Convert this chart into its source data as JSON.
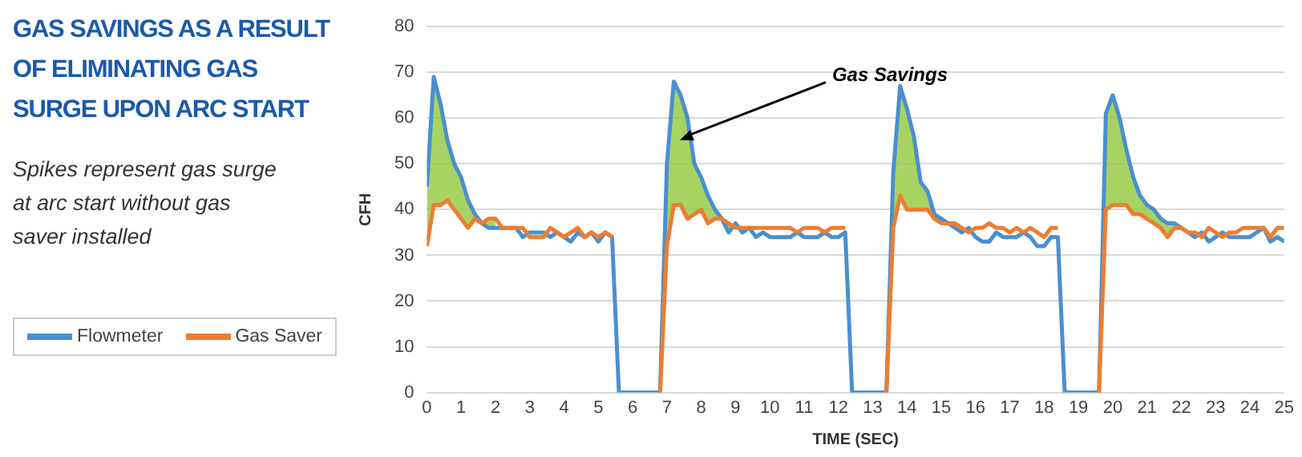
{
  "chart_data": {
    "type": "line",
    "title": "GAS SAVINGS AS A RESULT OF ELIMINATING GAS SURGE UPON ARC START",
    "subtitle": "Spikes represent gas surge at arc start without gas saver installed",
    "xlabel": "TIME (SEC)",
    "ylabel": "CFH",
    "x": [
      0,
      0.2,
      0.4,
      0.6,
      0.8,
      1,
      1.2,
      1.4,
      1.6,
      1.8,
      2,
      2.2,
      2.4,
      2.6,
      2.8,
      3,
      3.2,
      3.4,
      3.6,
      3.8,
      4,
      4.2,
      4.4,
      4.6,
      4.8,
      5,
      5.2,
      5.4,
      5.6,
      5.8,
      6,
      6.2,
      6.4,
      6.6,
      6.8,
      7,
      7.2,
      7.4,
      7.6,
      7.8,
      8,
      8.2,
      8.4,
      8.6,
      8.8,
      9,
      9.2,
      9.4,
      9.6,
      9.8,
      10,
      10.2,
      10.4,
      10.6,
      10.8,
      11,
      11.2,
      11.4,
      11.6,
      11.8,
      12,
      12.2,
      12.4,
      12.6,
      12.8,
      13,
      13.2,
      13.4,
      13.6,
      13.8,
      14,
      14.2,
      14.4,
      14.6,
      14.8,
      15,
      15.2,
      15.4,
      15.6,
      15.8,
      16,
      16.2,
      16.4,
      16.6,
      16.8,
      17,
      17.2,
      17.4,
      17.6,
      17.8,
      18,
      18.2,
      18.4,
      18.6,
      18.8,
      19,
      19.2,
      19.4,
      19.6,
      19.8,
      20,
      20.2,
      20.4,
      20.6,
      20.8,
      21,
      21.2,
      21.4,
      21.6,
      21.8,
      22,
      22.2,
      22.4,
      22.6,
      22.8,
      23,
      23.2,
      23.4,
      23.6,
      23.8,
      24,
      24.2,
      24.4,
      24.6,
      24.8,
      25
    ],
    "series": [
      {
        "name": "Flowmeter",
        "color": "#4a8fd0",
        "lower": [
          32,
          41,
          41,
          42,
          40,
          38,
          36,
          38,
          37,
          38,
          38,
          null,
          null,
          null,
          null,
          null,
          null,
          null,
          null,
          null,
          null,
          null,
          null,
          null,
          null,
          null,
          null,
          null,
          null,
          null,
          null,
          null,
          null,
          null,
          0,
          32,
          41,
          41,
          38,
          39,
          40,
          37,
          38,
          38,
          37,
          36,
          36,
          36,
          null,
          null,
          null,
          null,
          null,
          null,
          null,
          null,
          null,
          null,
          null,
          null,
          null,
          null,
          null,
          null,
          null,
          null,
          null,
          0,
          36,
          43,
          40,
          40,
          40,
          40,
          38,
          37,
          37,
          null,
          null,
          null,
          null,
          null,
          null,
          null,
          null,
          null,
          null,
          null,
          null,
          null,
          null,
          null,
          null,
          null,
          null,
          null,
          null,
          null,
          0,
          40,
          41,
          41,
          41,
          39,
          39,
          38,
          37,
          36,
          34,
          36,
          36,
          null,
          null,
          null,
          null,
          null,
          null,
          null,
          null,
          null,
          null,
          null,
          null,
          null,
          null,
          null
        ],
        "upper": [
          45,
          69,
          63,
          55,
          50,
          47,
          42,
          39,
          37,
          36,
          36,
          null,
          null,
          null,
          null,
          null,
          null,
          null,
          null,
          null,
          null,
          null,
          null,
          null,
          null,
          null,
          null,
          null,
          null,
          null,
          null,
          null,
          null,
          null,
          0,
          50,
          68,
          65,
          60,
          50,
          47,
          43,
          40,
          38,
          35,
          37,
          35,
          36,
          null,
          null,
          null,
          null,
          null,
          null,
          null,
          null,
          null,
          null,
          null,
          null,
          null,
          null,
          null,
          null,
          null,
          null,
          null,
          0,
          48,
          67,
          62,
          56,
          46,
          44,
          39,
          38,
          37,
          null,
          null,
          null,
          null,
          null,
          null,
          null,
          null,
          null,
          null,
          null,
          null,
          null,
          null,
          null,
          null,
          null,
          null,
          null,
          null,
          null,
          0,
          61,
          65,
          60,
          53,
          47,
          43,
          41,
          40,
          38,
          37,
          37,
          36,
          null,
          null,
          null,
          null,
          null,
          null,
          null,
          null,
          null,
          null,
          null,
          null,
          null,
          null,
          null
        ],
        "values": [
          45,
          69,
          63,
          55,
          50,
          47,
          42,
          39,
          37,
          36,
          36,
          36,
          36,
          36,
          34,
          35,
          35,
          35,
          34,
          35,
          34,
          33,
          35,
          34,
          35,
          33,
          35,
          34,
          0,
          0,
          0,
          0,
          0,
          0,
          0,
          50,
          68,
          65,
          60,
          50,
          47,
          43,
          40,
          38,
          35,
          37,
          35,
          36,
          34,
          35,
          34,
          34,
          34,
          34,
          35,
          34,
          34,
          34,
          35,
          34,
          34,
          35,
          0,
          0,
          0,
          0,
          0,
          0,
          48,
          67,
          62,
          56,
          46,
          44,
          39,
          38,
          37,
          36,
          35,
          36,
          34,
          33,
          33,
          35,
          34,
          34,
          34,
          35,
          34,
          32,
          32,
          34,
          34,
          0,
          0,
          0,
          0,
          0,
          0,
          61,
          65,
          60,
          53,
          47,
          43,
          41,
          40,
          38,
          37,
          37,
          36,
          35,
          34,
          35,
          33,
          34,
          35,
          34,
          34,
          34,
          34,
          35,
          36,
          33,
          34,
          33
        ]
      },
      {
        "name": "Gas Saver",
        "color": "#ed7d31",
        "values": [
          32,
          41,
          41,
          42,
          40,
          38,
          36,
          38,
          37,
          38,
          38,
          36,
          36,
          36,
          36,
          34,
          34,
          34,
          36,
          35,
          34,
          35,
          36,
          34,
          35,
          34,
          35,
          34,
          null,
          null,
          null,
          null,
          null,
          null,
          0,
          32,
          41,
          41,
          38,
          39,
          40,
          37,
          38,
          38,
          37,
          36,
          36,
          36,
          36,
          36,
          36,
          36,
          36,
          36,
          35,
          36,
          36,
          36,
          35,
          36,
          36,
          36,
          null,
          null,
          null,
          null,
          null,
          0,
          36,
          43,
          40,
          40,
          40,
          40,
          38,
          37,
          37,
          37,
          36,
          35,
          36,
          36,
          37,
          36,
          36,
          35,
          36,
          35,
          36,
          35,
          34,
          36,
          36,
          null,
          null,
          null,
          null,
          null,
          0,
          40,
          41,
          41,
          41,
          39,
          39,
          38,
          37,
          36,
          34,
          36,
          36,
          35,
          35,
          34,
          36,
          35,
          34,
          35,
          35,
          36,
          36,
          36,
          36,
          34,
          36,
          36
        ]
      }
    ],
    "xlim": [
      0,
      25
    ],
    "xticks": [
      0,
      1,
      2,
      3,
      4,
      5,
      6,
      7,
      8,
      9,
      10,
      11,
      12,
      13,
      14,
      15,
      16,
      17,
      18,
      19,
      20,
      21,
      22,
      23,
      24,
      25
    ],
    "ylim": [
      0,
      80
    ],
    "yticks": [
      0,
      10,
      20,
      30,
      40,
      50,
      60,
      70,
      80
    ],
    "grid": "y",
    "legend": "left",
    "marker": "none",
    "line_style": "solid",
    "annotations": [
      "Gas Savings"
    ]
  }
}
